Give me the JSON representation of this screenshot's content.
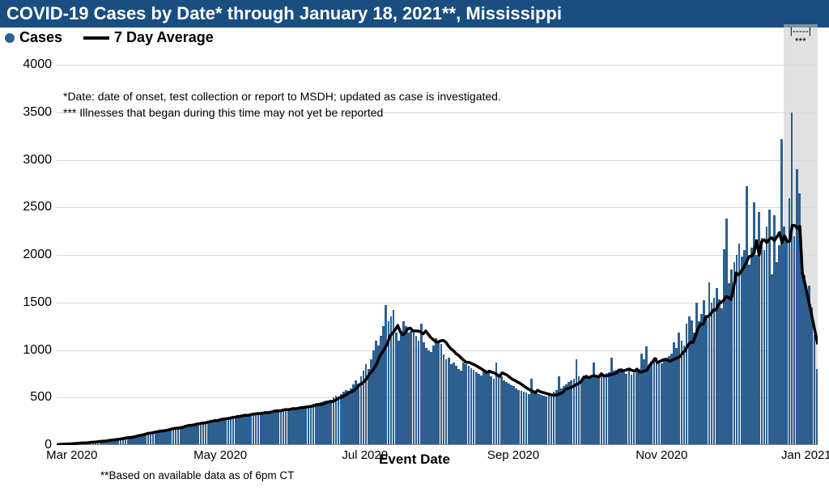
{
  "title": "COVID-19 Cases by Date* through January 18, 2021**, Mississippi",
  "legend": {
    "cases": "Cases",
    "avg": "7 Day Average"
  },
  "notes": {
    "line1": "*Date: date of onset, test collection or report to MSDH; updated as case is investigated.",
    "line2": "*** Illnesses that began during this time may not yet be reported"
  },
  "foot": "**Based on available data as of 6pm CT",
  "x_title": "Event Date",
  "gray_label_top": "|-----|",
  "gray_label_bot": "***",
  "chart": {
    "type": "bar+line",
    "y": {
      "min": 0,
      "max": 4000,
      "step": 500
    },
    "bar_color": "#2d5f8f",
    "line_color": "#000000",
    "line_width": 3.5,
    "grid_color": "#d8d8d8",
    "background": "#ffffff",
    "x_ticks": [
      {
        "label": "Mar 2020",
        "pos": 0.02
      },
      {
        "label": "May 2020",
        "pos": 0.215
      },
      {
        "label": "Jul 2020",
        "pos": 0.405
      },
      {
        "label": "Sep 2020",
        "pos": 0.6
      },
      {
        "label": "Nov 2020",
        "pos": 0.795
      },
      {
        "label": "Jan 2021",
        "pos": 0.985
      }
    ],
    "gray_band": {
      "start": 0.955,
      "end": 1.0
    },
    "bars": [
      5,
      8,
      10,
      12,
      10,
      15,
      14,
      18,
      20,
      22,
      25,
      22,
      28,
      30,
      35,
      32,
      38,
      40,
      45,
      42,
      50,
      55,
      60,
      58,
      65,
      70,
      75,
      80,
      85,
      82,
      90,
      100,
      110,
      105,
      120,
      130,
      135,
      128,
      140,
      145,
      150,
      155,
      150,
      160,
      170,
      175,
      180,
      185,
      180,
      190,
      200,
      210,
      215,
      205,
      220,
      225,
      230,
      240,
      235,
      245,
      250,
      260,
      265,
      260,
      270,
      280,
      275,
      285,
      290,
      300,
      295,
      310,
      305,
      315,
      320,
      310,
      325,
      330,
      335,
      340,
      330,
      345,
      350,
      340,
      355,
      360,
      370,
      360,
      365,
      375,
      380,
      370,
      385,
      390,
      380,
      395,
      400,
      395,
      410,
      405,
      420,
      415,
      430,
      440,
      425,
      450,
      460,
      470,
      455,
      480,
      500,
      520,
      510,
      540,
      560,
      580,
      570,
      600,
      640,
      680,
      650,
      720,
      780,
      850,
      800,
      900,
      1000,
      1100,
      1050,
      1150,
      1250,
      1470,
      1300,
      1350,
      1420,
      1180,
      1100,
      1200,
      1300,
      1250,
      1180,
      1200,
      1180,
      1150,
      1100,
      1280,
      1080,
      1020,
      1000,
      980,
      1050,
      1120,
      1100,
      1060,
      950,
      900,
      920,
      850,
      870,
      830,
      800,
      780,
      870,
      850,
      830,
      810,
      790,
      770,
      750,
      730,
      800,
      760,
      780,
      720,
      700,
      870,
      740,
      720,
      680,
      660,
      650,
      630,
      620,
      600,
      580,
      570,
      560,
      550,
      540,
      700,
      560,
      550,
      540,
      530,
      520,
      510,
      520,
      540,
      560,
      580,
      720,
      600,
      620,
      640,
      660,
      680,
      700,
      900,
      720,
      700,
      730,
      740,
      720,
      710,
      870,
      720,
      730,
      740,
      750,
      760,
      770,
      920,
      780,
      790,
      800,
      810,
      770,
      750,
      820,
      740,
      760,
      780,
      800,
      960,
      900,
      1040,
      830,
      880,
      900,
      920,
      880,
      860,
      900,
      920,
      940,
      960,
      1080,
      1020,
      1180,
      1100,
      1050,
      1280,
      1350,
      1310,
      1180,
      1500,
      1300,
      1380,
      1520,
      1350,
      1710,
      1500,
      1550,
      1650,
      1530,
      1440,
      2060,
      2380,
      1700,
      1850,
      1920,
      2000,
      2120,
      1980,
      2050,
      2720,
      1900,
      2080,
      2550,
      2000,
      2450,
      2180,
      2050,
      2300,
      2480,
      1800,
      2420,
      1920,
      2100,
      3220,
      2300,
      2150,
      2600,
      3500,
      2200,
      2900,
      2650,
      1820,
      1790,
      1620,
      1680,
      1450,
      1160,
      800
    ],
    "avg": [
      5,
      7,
      9,
      11,
      11,
      13,
      14,
      16,
      18,
      20,
      22,
      22,
      25,
      28,
      31,
      32,
      35,
      38,
      41,
      42,
      46,
      50,
      54,
      56,
      60,
      64,
      68,
      73,
      78,
      80,
      84,
      90,
      98,
      102,
      108,
      116,
      124,
      126,
      132,
      138,
      143,
      148,
      150,
      154,
      160,
      168,
      174,
      178,
      180,
      184,
      192,
      200,
      208,
      208,
      214,
      220,
      224,
      230,
      232,
      238,
      244,
      250,
      256,
      258,
      264,
      272,
      274,
      278,
      282,
      290,
      293,
      300,
      302,
      308,
      314,
      312,
      318,
      324,
      328,
      332,
      330,
      336,
      342,
      340,
      346,
      352,
      360,
      360,
      362,
      368,
      374,
      372,
      378,
      384,
      382,
      388,
      394,
      394,
      400,
      403,
      408,
      412,
      420,
      428,
      426,
      436,
      446,
      456,
      456,
      464,
      480,
      496,
      504,
      518,
      534,
      554,
      562,
      578,
      604,
      636,
      648,
      672,
      706,
      752,
      778,
      818,
      870,
      938,
      976,
      1020,
      1070,
      1150,
      1180,
      1210,
      1258,
      1192,
      1160,
      1180,
      1225,
      1230,
      1200,
      1200,
      1200,
      1190,
      1170,
      1200,
      1165,
      1130,
      1108,
      1086,
      1085,
      1098,
      1100,
      1080,
      1040,
      1010,
      990,
      958,
      942,
      914,
      890,
      870,
      870,
      858,
      846,
      832,
      816,
      800,
      782,
      764,
      778,
      765,
      758,
      740,
      722,
      760,
      748,
      735,
      712,
      694,
      680,
      664,
      650,
      632,
      612,
      595,
      580,
      566,
      552,
      576,
      562,
      553,
      546,
      538,
      530,
      525,
      526,
      532,
      544,
      556,
      590,
      596,
      604,
      618,
      634,
      648,
      664,
      710,
      716,
      710,
      720,
      730,
      724,
      718,
      750,
      726,
      728,
      735,
      742,
      750,
      758,
      790,
      780,
      784,
      792,
      798,
      786,
      776,
      798,
      768,
      770,
      780,
      790,
      840,
      870,
      910,
      868,
      880,
      892,
      902,
      892,
      882,
      898,
      906,
      920,
      932,
      972,
      994,
      1050,
      1080,
      1080,
      1150,
      1225,
      1270,
      1270,
      1350,
      1354,
      1378,
      1420,
      1420,
      1480,
      1500,
      1520,
      1560,
      1552,
      1530,
      1660,
      1810,
      1790,
      1830,
      1870,
      1920,
      1980,
      1990,
      2020,
      2150,
      2000,
      2140,
      2160,
      2130,
      2165,
      2180,
      2150,
      2190,
      2235,
      2130,
      2200,
      2140,
      2145,
      2310,
      2310,
      2280,
      2300,
      1810,
      1700,
      1570,
      1450,
      1320,
      1190,
      1060
    ]
  }
}
